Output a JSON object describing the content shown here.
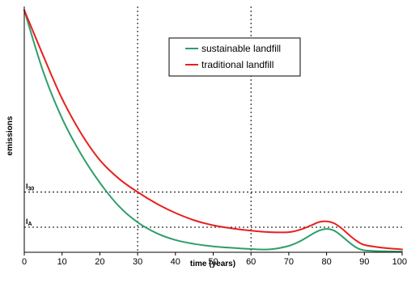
{
  "chart_data": {
    "type": "line",
    "xlabel": "time (years)",
    "ylabel": "emissions",
    "xlim": [
      0,
      100
    ],
    "ylim": [
      0,
      1
    ],
    "x_ticks": [
      0,
      10,
      20,
      30,
      40,
      50,
      60,
      70,
      80,
      90,
      100
    ],
    "vertical_reference_lines": [
      30,
      60
    ],
    "levels": [
      {
        "main": "I",
        "sub": "30",
        "value": 0.245
      },
      {
        "main": "I",
        "sub": "A",
        "value": 0.102
      }
    ],
    "legend_position": "top-center",
    "series": [
      {
        "name": "sustainable landfill",
        "color": "#2f9e6a",
        "x": [
          0,
          5,
          10,
          15,
          20,
          25,
          30,
          35,
          40,
          45,
          50,
          55,
          60,
          65,
          70,
          73,
          76,
          78,
          80,
          82,
          84,
          86,
          88,
          90,
          95,
          100
        ],
        "y": [
          0.985,
          0.735,
          0.545,
          0.4,
          0.283,
          0.188,
          0.122,
          0.078,
          0.05,
          0.034,
          0.024,
          0.018,
          0.013,
          0.012,
          0.026,
          0.045,
          0.072,
          0.088,
          0.095,
          0.088,
          0.066,
          0.04,
          0.018,
          0.008,
          0.004,
          0.003
        ]
      },
      {
        "name": "traditional landfill",
        "color": "#e8201e",
        "x": [
          0,
          5,
          10,
          15,
          20,
          25,
          30,
          35,
          40,
          45,
          50,
          55,
          60,
          65,
          70,
          73,
          76,
          78,
          80,
          82,
          84,
          86,
          88,
          90,
          95,
          100
        ],
        "y": [
          0.985,
          0.8,
          0.625,
          0.485,
          0.375,
          0.3,
          0.245,
          0.198,
          0.16,
          0.13,
          0.11,
          0.097,
          0.088,
          0.082,
          0.082,
          0.092,
          0.11,
          0.123,
          0.126,
          0.118,
          0.097,
          0.07,
          0.046,
          0.03,
          0.018,
          0.012
        ]
      }
    ]
  }
}
